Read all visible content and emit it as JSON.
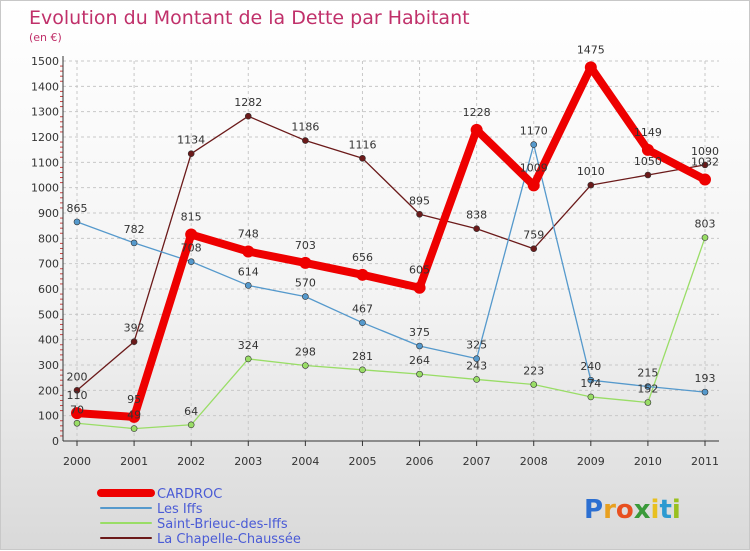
{
  "chart_data": {
    "type": "line",
    "title": "Evolution du Montant de la Dette par Habitant",
    "subtitle": "(en €)",
    "x": [
      "2000",
      "2001",
      "2002",
      "2003",
      "2004",
      "2005",
      "2006",
      "2007",
      "2008",
      "2009",
      "2010",
      "2011"
    ],
    "ylim": [
      0,
      1500
    ],
    "yticks": [
      0,
      100,
      200,
      300,
      400,
      500,
      600,
      700,
      800,
      900,
      1000,
      1100,
      1200,
      1300,
      1400,
      1500
    ],
    "grid": true,
    "legend_position": "bottom-left",
    "series": [
      {
        "name": "La Chapelle-Chaussée",
        "color": "#6b1a1a",
        "values": [
          200,
          392,
          1134,
          1282,
          1186,
          1116,
          895,
          838,
          759,
          1010,
          1050,
          1090
        ]
      },
      {
        "name": "Saint-Brieuc-des-Iffs",
        "color": "#99dd66",
        "values": [
          70,
          49,
          64,
          324,
          298,
          281,
          264,
          243,
          223,
          174,
          152,
          803
        ]
      },
      {
        "name": "Les Iffs",
        "color": "#5599cc",
        "values": [
          865,
          782,
          708,
          614,
          570,
          467,
          375,
          325,
          1170,
          240,
          215,
          193
        ]
      },
      {
        "name": "CARDROC",
        "color": "#ee0000",
        "values": [
          110,
          95,
          815,
          748,
          703,
          656,
          605,
          1228,
          1009,
          1475,
          1149,
          1032
        ]
      }
    ]
  },
  "legend_order": [
    "CARDROC",
    "Les Iffs",
    "Saint-Brieuc-des-Iffs",
    "La Chapelle-Chaussée"
  ],
  "logo": {
    "text": "Proxiti"
  }
}
